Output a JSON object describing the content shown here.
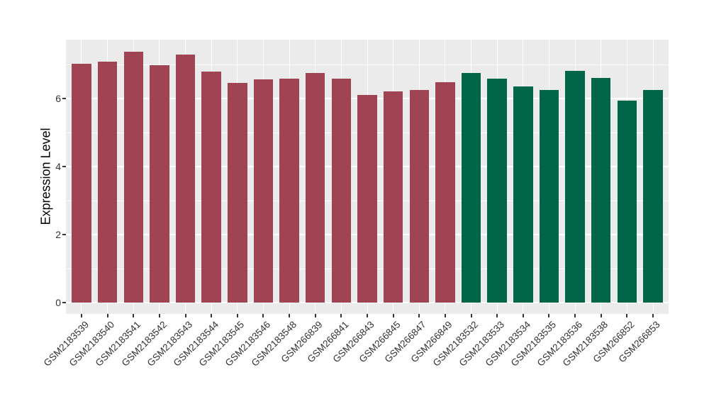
{
  "chart_data": {
    "type": "bar",
    "title": "",
    "xlabel": "",
    "ylabel": "Expression Level",
    "categories": [
      "GSM2183539",
      "GSM2183540",
      "GSM2183541",
      "GSM2183542",
      "GSM2183543",
      "GSM2183544",
      "GSM2183545",
      "GSM2183546",
      "GSM2183548",
      "GSM266839",
      "GSM266841",
      "GSM266843",
      "GSM266845",
      "GSM266847",
      "GSM266849",
      "GSM2183532",
      "GSM2183533",
      "GSM2183534",
      "GSM2183535",
      "GSM2183536",
      "GSM2183538",
      "GSM266852",
      "GSM266853"
    ],
    "values": [
      7.02,
      7.08,
      7.37,
      6.97,
      7.3,
      6.79,
      6.46,
      6.56,
      6.58,
      6.75,
      6.58,
      6.1,
      6.21,
      6.25,
      6.48,
      6.74,
      6.59,
      6.35,
      6.26,
      6.82,
      6.61,
      5.93,
      6.26
    ],
    "bar_color_groups": [
      {
        "color": "#A04352",
        "count": 15
      },
      {
        "color": "#006647",
        "count": 8
      }
    ],
    "yticks": [
      0,
      2,
      4,
      6
    ],
    "yticks_minor": [
      1,
      3,
      5,
      7
    ],
    "ylim": [
      0,
      7.75
    ],
    "grid": true,
    "legend": "none",
    "panel_background": "#EBEBEB",
    "gridline_color": "#FFFFFF",
    "axis_text_color": "#333333"
  }
}
